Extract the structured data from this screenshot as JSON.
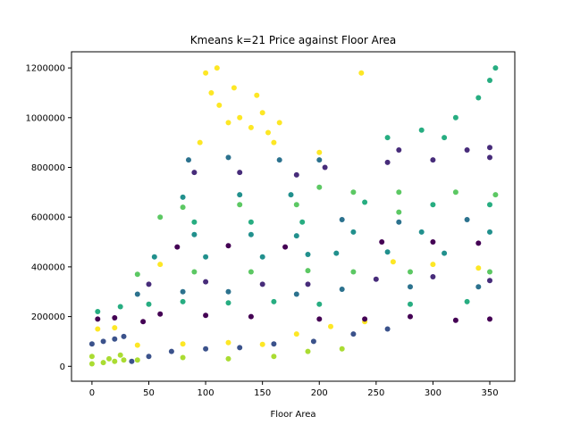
{
  "chart_data": {
    "type": "scatter",
    "title": "Kmeans k=21 Price against Floor Area",
    "xlabel": "Floor Area",
    "ylabel": "",
    "xlim": [
      -18,
      372
    ],
    "ylim": [
      -60000,
      1265000
    ],
    "xticks": [
      0,
      50,
      100,
      150,
      200,
      250,
      300,
      350
    ],
    "yticks": [
      0,
      200000,
      400000,
      600000,
      800000,
      1000000,
      1200000
    ],
    "grid": false,
    "legend": "none",
    "palette": {
      "dark_purple": "#440154",
      "indigo": "#472c7a",
      "blue": "#3b528b",
      "steel_blue": "#2c728e",
      "teal": "#21908d",
      "green_teal": "#27ad81",
      "light_green": "#5cc863",
      "yellow_green": "#aadc32",
      "yellow": "#fde725"
    },
    "series": [
      {
        "color": "#aadc32",
        "points": [
          [
            0,
            10000
          ],
          [
            10,
            15000
          ],
          [
            20,
            20000
          ],
          [
            28,
            25000
          ],
          [
            0,
            40000
          ],
          [
            15,
            30000
          ],
          [
            25,
            45000
          ],
          [
            40,
            25000
          ],
          [
            80,
            35000
          ],
          [
            120,
            30000
          ],
          [
            160,
            40000
          ],
          [
            190,
            60000
          ],
          [
            220,
            70000
          ]
        ]
      },
      {
        "color": "#3b528b",
        "points": [
          [
            0,
            90000
          ],
          [
            10,
            100000
          ],
          [
            20,
            110000
          ],
          [
            28,
            120000
          ],
          [
            35,
            20000
          ],
          [
            50,
            40000
          ],
          [
            70,
            60000
          ],
          [
            100,
            70000
          ],
          [
            130,
            75000
          ],
          [
            160,
            90000
          ],
          [
            195,
            100000
          ],
          [
            230,
            130000
          ],
          [
            260,
            150000
          ]
        ]
      },
      {
        "color": "#fde725",
        "points": [
          [
            5,
            150000
          ],
          [
            20,
            155000
          ],
          [
            40,
            85000
          ],
          [
            80,
            90000
          ],
          [
            120,
            95000
          ],
          [
            150,
            88000
          ],
          [
            180,
            130000
          ],
          [
            210,
            160000
          ],
          [
            240,
            180000
          ],
          [
            60,
            410000
          ],
          [
            100,
            1180000
          ],
          [
            105,
            1100000
          ],
          [
            112,
            1050000
          ],
          [
            120,
            980000
          ],
          [
            125,
            1120000
          ],
          [
            130,
            1000000
          ],
          [
            140,
            960000
          ],
          [
            150,
            1020000
          ],
          [
            155,
            940000
          ],
          [
            160,
            900000
          ],
          [
            95,
            900000
          ],
          [
            110,
            1200000
          ],
          [
            145,
            1090000
          ],
          [
            165,
            980000
          ],
          [
            200,
            860000
          ],
          [
            237,
            1180000
          ],
          [
            265,
            420000
          ],
          [
            300,
            410000
          ],
          [
            340,
            395000
          ]
        ]
      },
      {
        "color": "#440154",
        "points": [
          [
            5,
            190000
          ],
          [
            20,
            195000
          ],
          [
            45,
            180000
          ],
          [
            60,
            210000
          ],
          [
            100,
            205000
          ],
          [
            140,
            200000
          ],
          [
            200,
            190000
          ],
          [
            240,
            190000
          ],
          [
            280,
            200000
          ],
          [
            320,
            185000
          ],
          [
            350,
            190000
          ],
          [
            75,
            480000
          ],
          [
            120,
            485000
          ],
          [
            170,
            480000
          ],
          [
            255,
            500000
          ],
          [
            300,
            500000
          ],
          [
            340,
            495000
          ]
        ]
      },
      {
        "color": "#27ad81",
        "points": [
          [
            5,
            220000
          ],
          [
            25,
            240000
          ],
          [
            50,
            250000
          ],
          [
            80,
            260000
          ],
          [
            120,
            255000
          ],
          [
            160,
            260000
          ],
          [
            200,
            250000
          ],
          [
            280,
            250000
          ],
          [
            330,
            260000
          ],
          [
            90,
            580000
          ],
          [
            140,
            580000
          ],
          [
            185,
            580000
          ],
          [
            240,
            660000
          ],
          [
            300,
            650000
          ],
          [
            350,
            650000
          ],
          [
            290,
            950000
          ],
          [
            320,
            1000000
          ],
          [
            350,
            1150000
          ],
          [
            355,
            1200000
          ],
          [
            310,
            920000
          ],
          [
            340,
            1080000
          ],
          [
            260,
            920000
          ]
        ]
      },
      {
        "color": "#2c728e",
        "points": [
          [
            40,
            290000
          ],
          [
            80,
            300000
          ],
          [
            120,
            300000
          ],
          [
            180,
            290000
          ],
          [
            220,
            310000
          ],
          [
            280,
            320000
          ],
          [
            340,
            320000
          ],
          [
            85,
            830000
          ],
          [
            120,
            840000
          ],
          [
            165,
            830000
          ],
          [
            200,
            830000
          ],
          [
            220,
            590000
          ],
          [
            270,
            580000
          ],
          [
            330,
            590000
          ]
        ]
      },
      {
        "color": "#472c7a",
        "points": [
          [
            50,
            330000
          ],
          [
            100,
            340000
          ],
          [
            150,
            330000
          ],
          [
            190,
            330000
          ],
          [
            250,
            350000
          ],
          [
            300,
            360000
          ],
          [
            350,
            345000
          ],
          [
            90,
            780000
          ],
          [
            130,
            780000
          ],
          [
            180,
            770000
          ],
          [
            205,
            800000
          ],
          [
            260,
            820000
          ],
          [
            300,
            830000
          ],
          [
            350,
            840000
          ],
          [
            270,
            870000
          ],
          [
            330,
            870000
          ],
          [
            350,
            880000
          ]
        ]
      },
      {
        "color": "#5cc863",
        "points": [
          [
            40,
            370000
          ],
          [
            90,
            380000
          ],
          [
            140,
            380000
          ],
          [
            190,
            385000
          ],
          [
            230,
            380000
          ],
          [
            280,
            380000
          ],
          [
            350,
            380000
          ],
          [
            80,
            640000
          ],
          [
            130,
            650000
          ],
          [
            180,
            650000
          ],
          [
            60,
            600000
          ],
          [
            200,
            720000
          ],
          [
            230,
            700000
          ],
          [
            270,
            700000
          ],
          [
            320,
            700000
          ],
          [
            355,
            690000
          ],
          [
            270,
            620000
          ]
        ]
      },
      {
        "color": "#21908d",
        "points": [
          [
            55,
            440000
          ],
          [
            100,
            440000
          ],
          [
            150,
            440000
          ],
          [
            190,
            450000
          ],
          [
            215,
            455000
          ],
          [
            260,
            460000
          ],
          [
            310,
            455000
          ],
          [
            90,
            530000
          ],
          [
            140,
            530000
          ],
          [
            180,
            525000
          ],
          [
            80,
            680000
          ],
          [
            130,
            690000
          ],
          [
            175,
            690000
          ],
          [
            230,
            540000
          ],
          [
            290,
            540000
          ],
          [
            350,
            540000
          ]
        ]
      }
    ]
  }
}
